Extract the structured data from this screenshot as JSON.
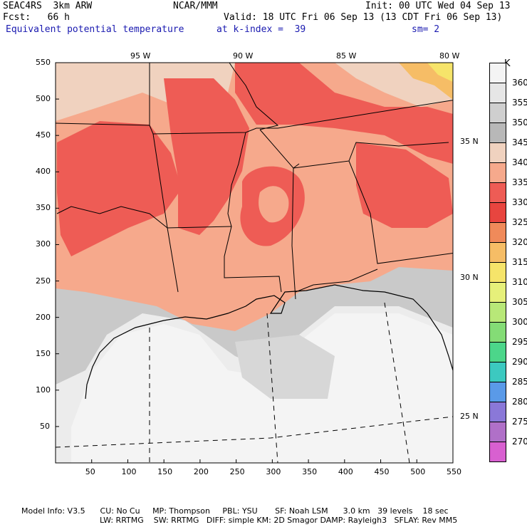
{
  "header": {
    "model": "SEAC4RS  3km ARW",
    "org": "NCAR/MMM",
    "init": "Init: 00 UTC Wed 04 Sep 13",
    "fcst": "Fcst:   66 h",
    "valid": "Valid: 18 UTC Fri 06 Sep 13 (13 CDT Fri 06 Sep 13)",
    "field": "Equivalent potential temperature",
    "level": "at k-index =  39",
    "smooth": "sm= 2"
  },
  "axes": {
    "x_ticks": [
      "50",
      "100",
      "150",
      "200",
      "250",
      "300",
      "350",
      "400",
      "450",
      "500",
      "550"
    ],
    "y_ticks": [
      "50",
      "100",
      "150",
      "200",
      "250",
      "300",
      "350",
      "400",
      "450",
      "500",
      "550"
    ],
    "lon_labels": [
      "95 W",
      "90 W",
      "85 W",
      "80 W"
    ],
    "lat_labels": [
      "35 N",
      "30 N",
      "25 N"
    ]
  },
  "legend": {
    "unit": "K",
    "levels": [
      "360",
      "355",
      "350",
      "345",
      "340",
      "335",
      "330",
      "325",
      "320",
      "315",
      "310",
      "305",
      "300",
      "295",
      "290",
      "285",
      "280",
      "275",
      "270"
    ],
    "colors": [
      "#f4f4f4",
      "#e6e6e6",
      "#cfcfcf",
      "#b8b8b8",
      "#f0d2bf",
      "#f6a98c",
      "#ee5c55",
      "#e8453f",
      "#f08a5a",
      "#f6bd66",
      "#f6e46a",
      "#e6f07a",
      "#b8e878",
      "#84dc76",
      "#4cd68a",
      "#3cc9c0",
      "#5a9ae8",
      "#8a78d8",
      "#b070c8",
      "#d860d0"
    ]
  },
  "footer": {
    "line1": "Model Info: V3.5      CU: No Cu     MP: Thompson     PBL: YSU       SF: Noah LSM      3.0 km   39 levels    18 sec",
    "line2": "LW: RRTMG    SW: RRTMG   DIFF: simple KM: 2D Smagor DAMP: Rayleigh3   SFLAY: Rev MM5"
  }
}
